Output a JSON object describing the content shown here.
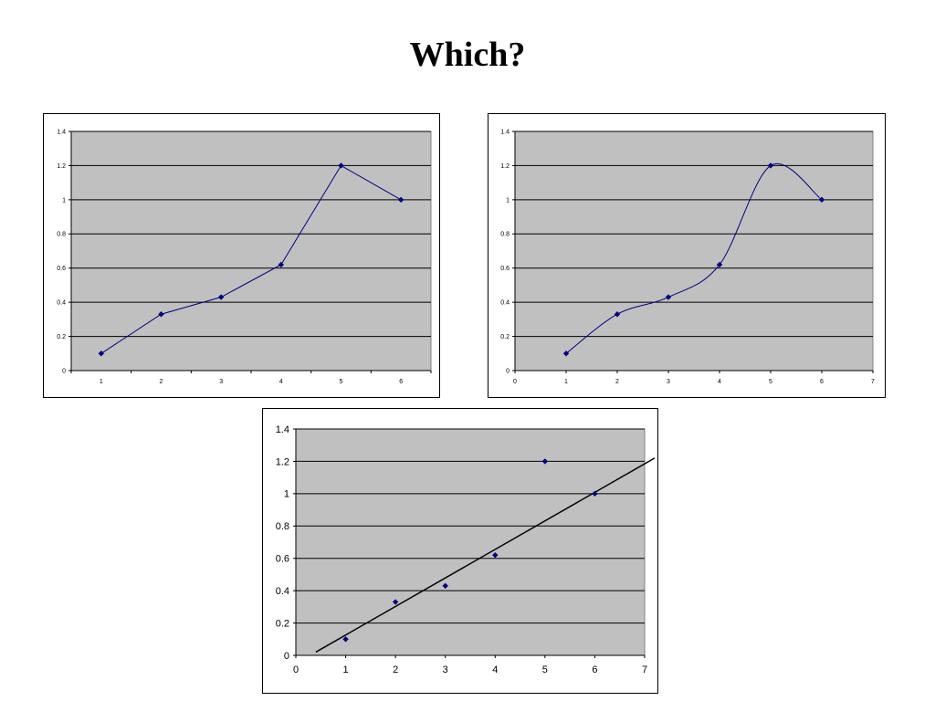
{
  "slide": {
    "title": "Which?"
  },
  "chart_data": [
    {
      "type": "line",
      "style": "straight",
      "x": [
        1,
        2,
        3,
        4,
        5,
        6
      ],
      "y": [
        0.1,
        0.33,
        0.43,
        0.62,
        1.2,
        1.0
      ],
      "xaxis": "category",
      "x_tick_labels": [
        "1",
        "2",
        "3",
        "4",
        "5",
        "6"
      ],
      "y_tick_labels": [
        "0",
        "0.2",
        "0.4",
        "0.6",
        "0.8",
        "1",
        "1.2",
        "1.4"
      ],
      "ylim": [
        0,
        1.4
      ],
      "grid": true,
      "legend": "none",
      "plot_color": "#C0C0C0",
      "series_color": "#000080"
    },
    {
      "type": "line",
      "style": "smoothed",
      "x": [
        1,
        2,
        3,
        4,
        5,
        6
      ],
      "y": [
        0.1,
        0.33,
        0.43,
        0.62,
        1.2,
        1.0
      ],
      "xlim": [
        0,
        7
      ],
      "x_tick_labels": [
        "0",
        "1",
        "2",
        "3",
        "4",
        "5",
        "6",
        "7"
      ],
      "y_tick_labels": [
        "0",
        "0.2",
        "0.4",
        "0.6",
        "0.8",
        "1",
        "1.2",
        "1.4"
      ],
      "ylim": [
        0,
        1.4
      ],
      "grid": true,
      "legend": "none",
      "plot_color": "#C0C0C0",
      "series_color": "#000080"
    },
    {
      "type": "scatter",
      "x": [
        1,
        2,
        3,
        4,
        5,
        6
      ],
      "y": [
        0.1,
        0.33,
        0.43,
        0.62,
        1.2,
        1.0
      ],
      "trendline": {
        "x": [
          0.4,
          7.2
        ],
        "y": [
          0.02,
          1.22
        ]
      },
      "xlim": [
        0,
        7
      ],
      "x_tick_labels": [
        "0",
        "1",
        "2",
        "3",
        "4",
        "5",
        "6",
        "7"
      ],
      "y_tick_labels": [
        "0",
        "0.2",
        "0.4",
        "0.6",
        "0.8",
        "1",
        "1.2",
        "1.4"
      ],
      "ylim": [
        0,
        1.4
      ],
      "grid": true,
      "legend": "none",
      "plot_color": "#C0C0C0",
      "series_color": "#000080",
      "trendline_color": "#000000"
    }
  ]
}
